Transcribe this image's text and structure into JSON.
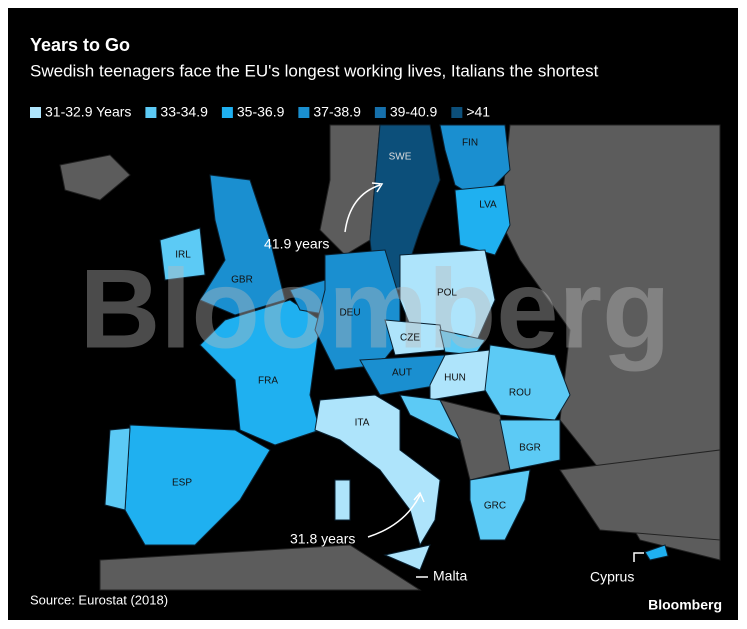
{
  "header": {
    "title": "Years to Go",
    "subtitle": "Swedish teenagers face the EU's longest working lives, Italians the shortest"
  },
  "legend": [
    {
      "label": "31-32.9 Years",
      "color": "#aee4fb"
    },
    {
      "label": "33-34.9",
      "color": "#5ccaf5"
    },
    {
      "label": "35-36.9",
      "color": "#1fb0f0"
    },
    {
      "label": "37-38.9",
      "color": "#1a8fd0"
    },
    {
      "label": "39-40.9",
      "color": "#1670ab"
    },
    {
      "label": ">41",
      "color": "#0c4f7a"
    }
  ],
  "countries": [
    "SWE",
    "FIN",
    "LVA",
    "IRL",
    "GBR",
    "DEU",
    "POL",
    "CZE",
    "FRA",
    "AUT",
    "HUN",
    "ROU",
    "ITA",
    "ESP",
    "BGR",
    "GRC"
  ],
  "annotations": [
    "41.9 years",
    "31.8 years",
    "Malta",
    "Cyprus"
  ],
  "watermark": "Bloomberg",
  "footer": {
    "source": "Source: Eurostat (2018)",
    "brand": "Bloomberg"
  }
}
